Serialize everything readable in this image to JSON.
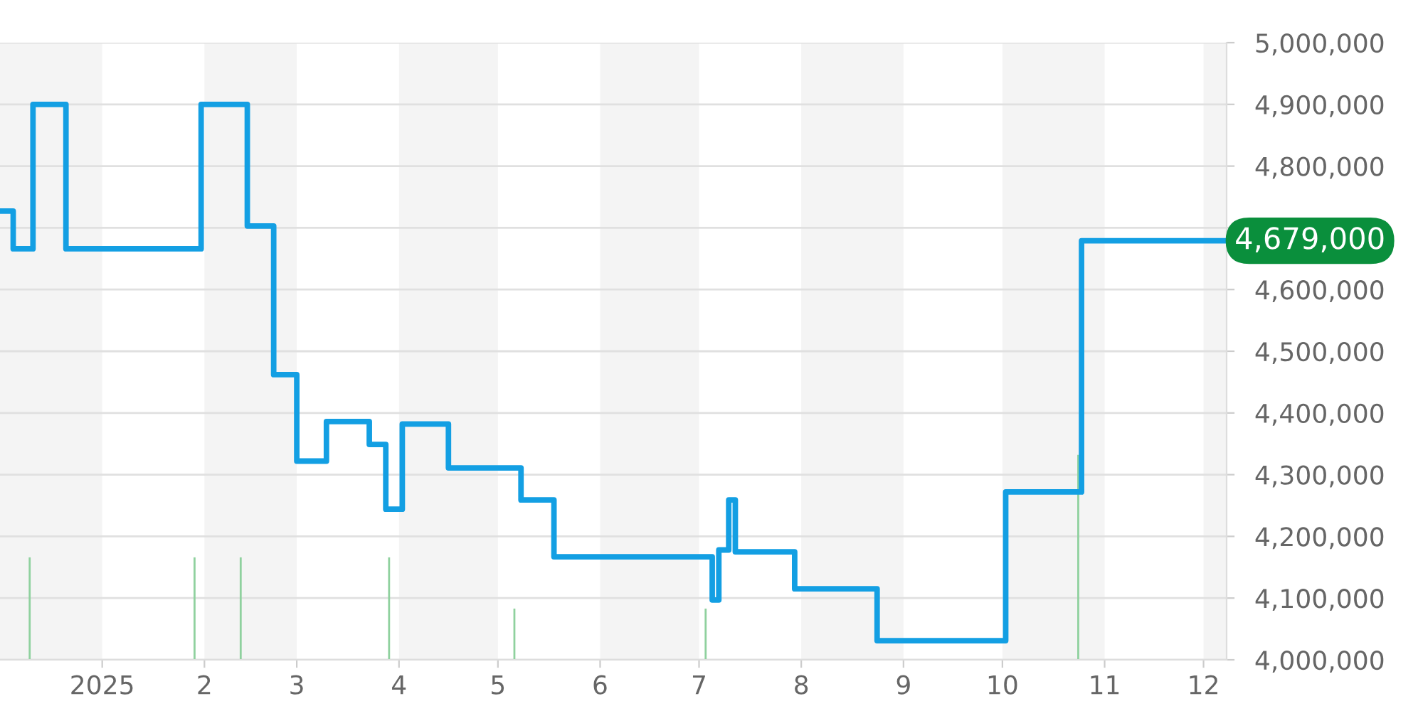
{
  "chart_data": {
    "type": "step",
    "x": [
      "2024-12-01",
      "2024-12-05",
      "2024-12-11",
      "2024-12-21",
      "2025-01-31",
      "2025-02-14",
      "2025-02-22",
      "2025-03-01",
      "2025-03-10",
      "2025-03-23",
      "2025-03-28",
      "2025-04-02",
      "2025-04-16",
      "2025-05-08",
      "2025-05-18",
      "2025-07-05",
      "2025-07-07",
      "2025-07-10",
      "2025-07-12",
      "2025-07-30",
      "2025-08-24",
      "2025-10-02",
      "2025-10-25",
      "2025-12-08"
    ],
    "series": [
      {
        "color": "#139fe3",
        "values": [
          4727000,
          4666000,
          4900000,
          4666000,
          4900000,
          4703000,
          4462000,
          4322000,
          4386000,
          4349000,
          4244000,
          4382000,
          4311000,
          4259000,
          4167000,
          4097000,
          4178000,
          4259000,
          4175000,
          4115000,
          4031000,
          4272000,
          4679000,
          4679000
        ]
      },
      {
        "type": "bar",
        "color": "#8fd19e",
        "x": [
          "2024-12-10",
          "2025-01-29",
          "2025-02-12",
          "2025-03-29",
          "2025-05-06",
          "2025-07-03",
          "2025-10-24"
        ],
        "base": [
          4000000,
          4000000,
          4000000,
          4000000,
          4000000,
          4000000,
          4000000
        ],
        "values": [
          166000,
          166000,
          166000,
          166000,
          83000,
          83000,
          332000
        ]
      }
    ],
    "xlim": [
      "2024-12-01",
      "2025-12-08"
    ],
    "xticks": [
      {
        "value": "2025-01-01",
        "label": "2025"
      },
      {
        "value": "2025-02-01",
        "label": "2"
      },
      {
        "value": "2025-03-01",
        "label": "3"
      },
      {
        "value": "2025-04-01",
        "label": "4"
      },
      {
        "value": "2025-05-01",
        "label": "5"
      },
      {
        "value": "2025-06-01",
        "label": "6"
      },
      {
        "value": "2025-07-01",
        "label": "7"
      },
      {
        "value": "2025-08-01",
        "label": "8"
      },
      {
        "value": "2025-09-01",
        "label": "9"
      },
      {
        "value": "2025-10-01",
        "label": "10"
      },
      {
        "value": "2025-11-01",
        "label": "11"
      },
      {
        "value": "2025-12-01",
        "label": "12"
      }
    ],
    "ylim": [
      4000000,
      5000000
    ],
    "yticks": [
      {
        "value": 4000000,
        "label": "4,000,000"
      },
      {
        "value": 4100000,
        "label": "4,100,000"
      },
      {
        "value": 4200000,
        "label": "4,200,000"
      },
      {
        "value": 4300000,
        "label": "4,300,000"
      },
      {
        "value": 4400000,
        "label": "4,400,000"
      },
      {
        "value": 4500000,
        "label": "4,500,000"
      },
      {
        "value": 4600000,
        "label": "4,600,000"
      },
      {
        "value": 4700000,
        "label": null
      },
      {
        "value": 4800000,
        "label": "4,800,000"
      },
      {
        "value": 4900000,
        "label": "4,900,000"
      },
      {
        "value": 5000000,
        "label": "5,000,000"
      }
    ],
    "grid": "y",
    "bands": [
      {
        "axis": "x",
        "from": "2024-12-01",
        "to": "2025-01-01",
        "color": "#f4f4f4"
      },
      {
        "axis": "x",
        "from": "2025-02-01",
        "to": "2025-03-01",
        "color": "#f4f4f4"
      },
      {
        "axis": "x",
        "from": "2025-04-01",
        "to": "2025-05-01",
        "color": "#f4f4f4"
      },
      {
        "axis": "x",
        "from": "2025-06-01",
        "to": "2025-07-01",
        "color": "#f4f4f4"
      },
      {
        "axis": "x",
        "from": "2025-08-01",
        "to": "2025-09-01",
        "color": "#f4f4f4"
      },
      {
        "axis": "x",
        "from": "2025-10-01",
        "to": "2025-11-01",
        "color": "#f4f4f4"
      },
      {
        "axis": "x",
        "from": "2025-12-01",
        "to": "2025-12-08",
        "color": "#f4f4f4"
      }
    ],
    "annotations": [
      {
        "text": "4,679,000",
        "x": "2025-12-08",
        "y": 4679000
      }
    ]
  }
}
